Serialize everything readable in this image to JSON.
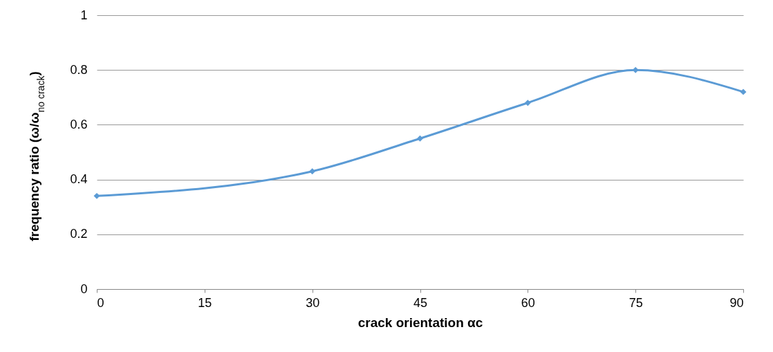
{
  "chart_data": {
    "type": "line",
    "xlabel": "crack orientation αc",
    "ylabel": "frequency ratio (ω/ω$_{no crack}$)",
    "x": [
      0,
      30,
      45,
      60,
      75,
      90
    ],
    "series": [
      {
        "color": "#5b9bd5",
        "values": [
          0.34,
          0.43,
          0.55,
          0.68,
          0.8,
          0.72
        ]
      }
    ],
    "xlim": [
      0,
      90
    ],
    "xticks": [
      0,
      15,
      30,
      45,
      60,
      75,
      90
    ],
    "ylim": [
      0,
      1
    ],
    "yticks": [
      0,
      0.2,
      0.4,
      0.6,
      0.8,
      1
    ],
    "grid": "y",
    "marker": "diamond",
    "line_style": "solid"
  }
}
